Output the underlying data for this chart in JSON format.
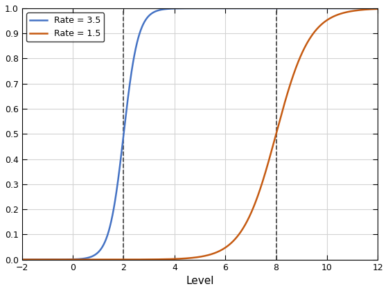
{
  "title": "",
  "xlabel": "Level",
  "ylabel": "",
  "xlim": [
    -2,
    12
  ],
  "ylim": [
    0,
    1
  ],
  "xticks": [
    -2,
    0,
    2,
    4,
    6,
    8,
    10,
    12
  ],
  "yticks": [
    0,
    0.1,
    0.2,
    0.3,
    0.4,
    0.5,
    0.6,
    0.7,
    0.8,
    0.9,
    1.0
  ],
  "curve1": {
    "label": "Rate = 3.5",
    "rate": 3.5,
    "midpoint": 2.0,
    "color": "#4472C4"
  },
  "curve2": {
    "label": "Rate = 1.5",
    "rate": 1.5,
    "midpoint": 8.0,
    "color": "#C55A11"
  },
  "vline1": {
    "x": 2.0,
    "color": "#404040",
    "linestyle": "--",
    "linewidth": 1.2
  },
  "vline2": {
    "x": 8.0,
    "color": "#404040",
    "linestyle": "--",
    "linewidth": 1.2
  },
  "legend_loc": "upper left",
  "grid": true,
  "grid_color": "#D3D3D3",
  "background_color": "#FFFFFF",
  "line_width": 1.8,
  "figsize": [
    5.6,
    4.2
  ],
  "dpi": 100
}
